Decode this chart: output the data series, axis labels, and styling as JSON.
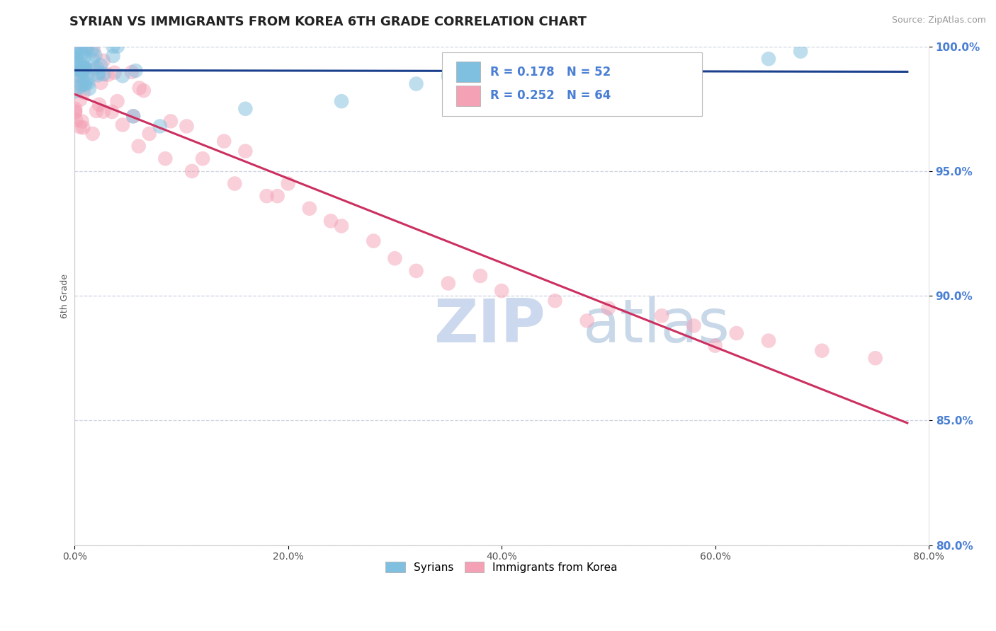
{
  "title": "SYRIAN VS IMMIGRANTS FROM KOREA 6TH GRADE CORRELATION CHART",
  "source_text": "Source: ZipAtlas.com",
  "ylabel": "6th Grade",
  "legend_label_blue": "Syrians",
  "legend_label_pink": "Immigrants from Korea",
  "R_blue": 0.178,
  "N_blue": 52,
  "R_pink": 0.252,
  "N_pink": 64,
  "xlim": [
    0.0,
    80.0
  ],
  "ylim": [
    80.0,
    100.0
  ],
  "xticks": [
    0.0,
    20.0,
    40.0,
    60.0,
    80.0
  ],
  "yticks": [
    80.0,
    85.0,
    90.0,
    95.0,
    100.0
  ],
  "color_blue": "#7fbfdf",
  "color_pink": "#f4a0b5",
  "trendline_blue": "#1a3f8c",
  "trendline_pink": "#cc3060",
  "watermark_color": "#ccd8ee",
  "background": "#ffffff",
  "title_fontsize": 13,
  "axis_label_fontsize": 9,
  "tick_fontsize": 10,
  "ytick_color": "#4a7fd4",
  "xtick_color": "#555555"
}
